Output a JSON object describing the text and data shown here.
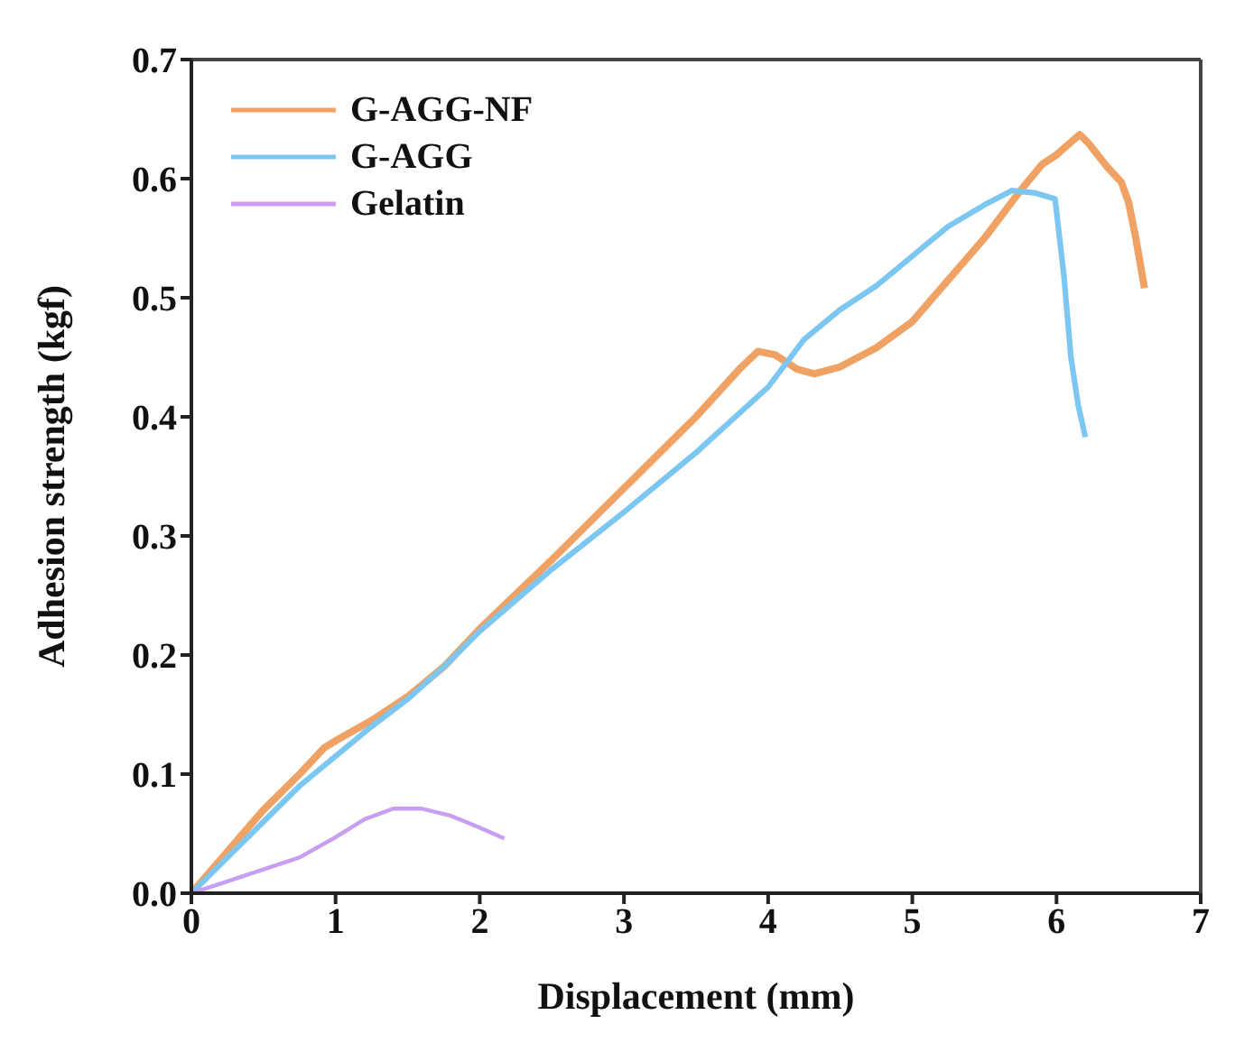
{
  "chart_data": {
    "type": "line",
    "xlabel": "Displacement (mm)",
    "ylabel": "Adhesion strength (kgf)",
    "xlim": [
      0,
      7
    ],
    "xticks": [
      0,
      1,
      2,
      3,
      4,
      5,
      6,
      7
    ],
    "ylim": [
      0,
      0.7
    ],
    "yticks": [
      {
        "value": 0,
        "label": "0.0"
      },
      0.1,
      0.2,
      0.3,
      0.4,
      0.5,
      0.6,
      0.7
    ],
    "legend": "top left",
    "marker": "none",
    "line_style": "solid",
    "series": [
      {
        "name": "G-AGG-NF",
        "color": "#f0a264",
        "x": [
          0,
          0.25,
          0.5,
          0.75,
          0.92,
          1.0,
          1.25,
          1.5,
          1.75,
          2.0,
          2.5,
          3.0,
          3.5,
          3.8,
          3.93,
          4.05,
          4.2,
          4.32,
          4.5,
          4.75,
          5.0,
          5.25,
          5.5,
          5.75,
          5.9,
          6.0,
          6.16,
          6.22,
          6.35,
          6.45,
          6.5,
          6.55,
          6.61
        ],
        "values": [
          0,
          0.035,
          0.07,
          0.1,
          0.122,
          0.128,
          0.145,
          0.165,
          0.19,
          0.222,
          0.28,
          0.34,
          0.4,
          0.44,
          0.455,
          0.452,
          0.44,
          0.436,
          0.442,
          0.458,
          0.48,
          0.515,
          0.55,
          0.59,
          0.612,
          0.62,
          0.637,
          0.63,
          0.61,
          0.597,
          0.58,
          0.55,
          0.508
        ]
      },
      {
        "name": "G-AGG",
        "color": "#7cc6f2",
        "x": [
          0,
          0.25,
          0.5,
          0.75,
          1.0,
          1.25,
          1.5,
          1.75,
          2.0,
          2.5,
          3.0,
          3.5,
          4.0,
          4.25,
          4.5,
          4.75,
          5.0,
          5.25,
          5.5,
          5.69,
          5.85,
          5.99,
          6.05,
          6.1,
          6.15,
          6.2
        ],
        "values": [
          0,
          0.03,
          0.06,
          0.09,
          0.115,
          0.14,
          0.163,
          0.19,
          0.22,
          0.272,
          0.32,
          0.37,
          0.425,
          0.465,
          0.49,
          0.51,
          0.535,
          0.56,
          0.578,
          0.59,
          0.588,
          0.583,
          0.52,
          0.45,
          0.41,
          0.383
        ]
      },
      {
        "name": "Gelatin",
        "color": "#c79ef0",
        "x": [
          0,
          0.25,
          0.5,
          0.75,
          1.0,
          1.2,
          1.4,
          1.6,
          1.8,
          2.0,
          2.17
        ],
        "values": [
          0,
          0.01,
          0.02,
          0.03,
          0.047,
          0.062,
          0.071,
          0.071,
          0.065,
          0.055,
          0.046
        ]
      }
    ]
  }
}
